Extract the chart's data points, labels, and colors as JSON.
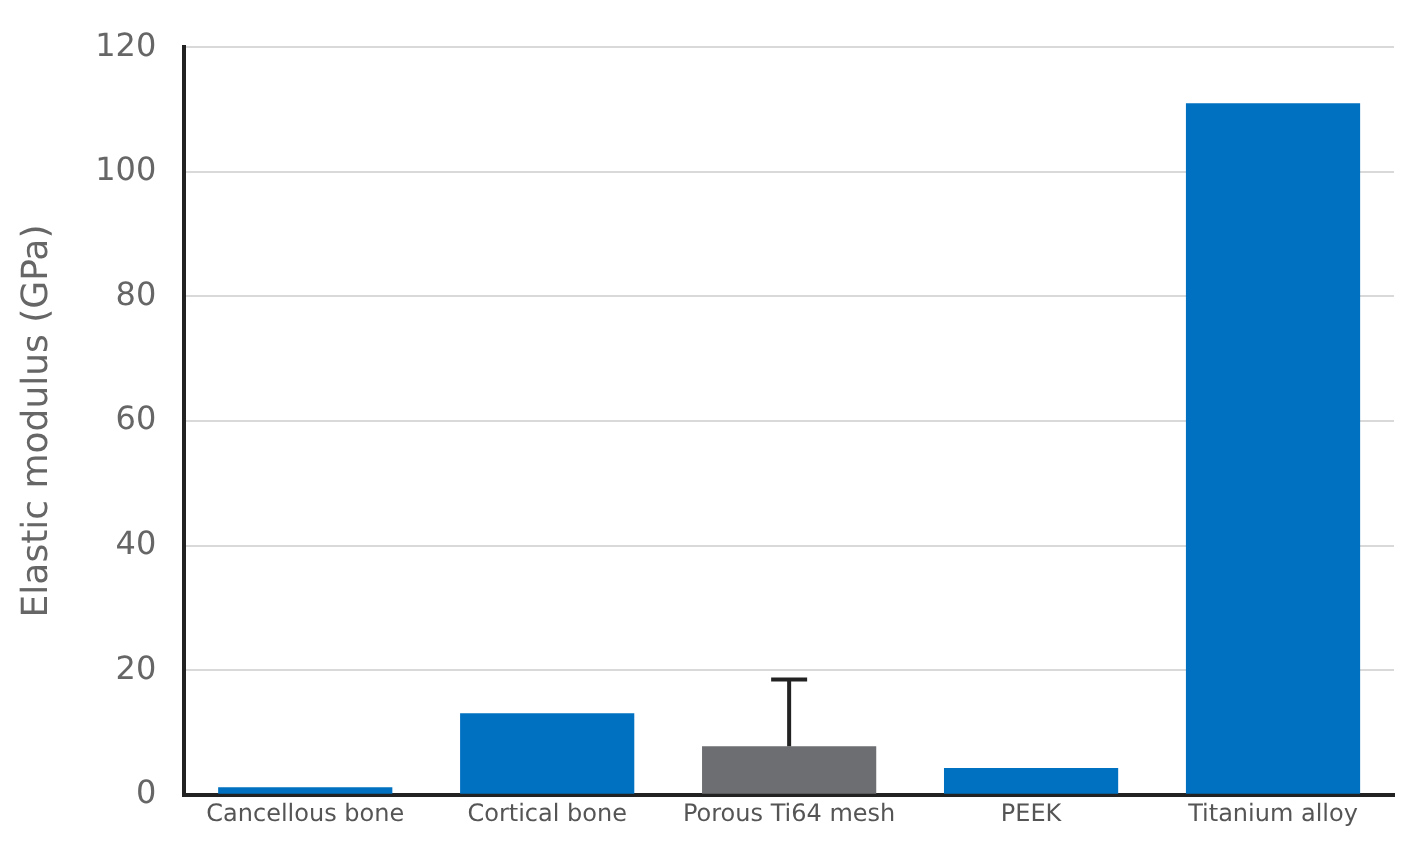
{
  "chart_data": {
    "type": "bar",
    "ylabel": "Elastic modulus (GPa)",
    "categories": [
      "Cancellous bone",
      "Cortical bone",
      "Porous Ti64 mesh",
      "PEEK",
      "Titanium alloy"
    ],
    "values": [
      1.2,
      13.1,
      7.8,
      4.3,
      111
    ],
    "colors": [
      "#0070c0",
      "#0070c0",
      "#6d6e71",
      "#0070c0",
      "#0070c0"
    ],
    "errors": [
      null,
      null,
      [
        7.8,
        18.5
      ],
      null,
      null
    ],
    "ylim": [
      0,
      120
    ],
    "yticks": [
      0,
      20,
      40,
      60,
      80,
      100,
      120
    ],
    "grid": "y",
    "legend": false
  }
}
